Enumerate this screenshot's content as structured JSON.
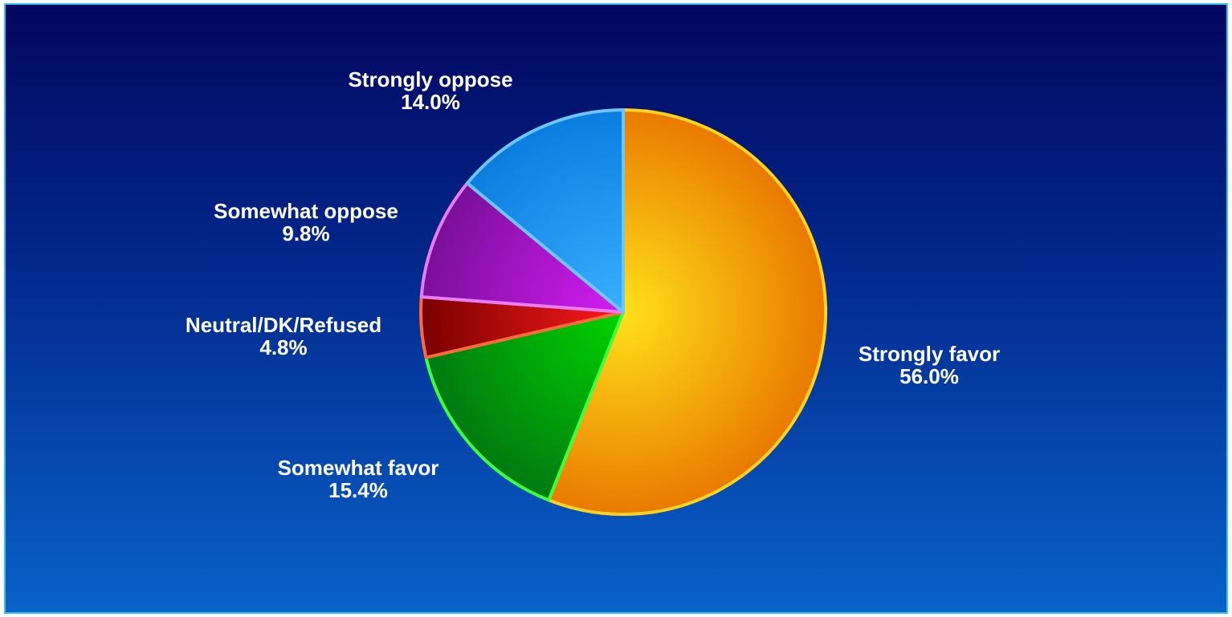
{
  "chart_data": {
    "type": "pie",
    "title": "",
    "slices": [
      {
        "label": "Strongly favor",
        "value": 56.0,
        "value_label": "56.0%",
        "color_a": "#ffe11a",
        "color_b": "#e97a00",
        "edge": "#ffd21f"
      },
      {
        "label": "Somewhat favor",
        "value": 15.4,
        "value_label": "15.4%",
        "color_a": "#00d400",
        "color_b": "#007a10",
        "edge": "#3dff3d"
      },
      {
        "label": "Neutral/DK/Refused",
        "value": 4.8,
        "value_label": "4.8%",
        "color_a": "#ff1a1a",
        "color_b": "#7a0000",
        "edge": "#ff6a3a"
      },
      {
        "label": "Somewhat oppose",
        "value": 9.8,
        "value_label": "9.8%",
        "color_a": "#d51cf5",
        "color_b": "#7a0f9a",
        "edge": "#ea7cff"
      },
      {
        "label": "Strongly oppose",
        "value": 14.0,
        "value_label": "14.0%",
        "color_a": "#3ab0ff",
        "color_b": "#0c7de0",
        "edge": "#6cc7ff"
      }
    ],
    "start_angle_deg": 0,
    "direction": "clockwise",
    "legend": "none"
  }
}
